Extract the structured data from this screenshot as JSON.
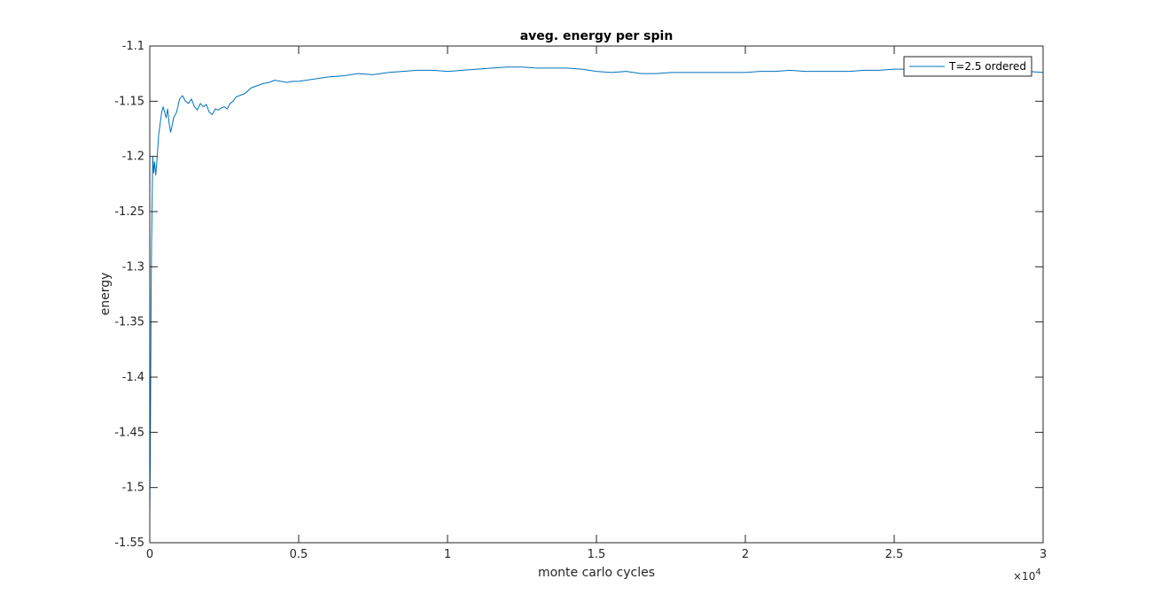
{
  "chart_data": {
    "type": "line",
    "title": "aveg. energy per spin",
    "xlabel": "monte carlo cycles",
    "ylabel": "energy",
    "xlim": [
      0,
      30000
    ],
    "ylim": [
      -1.55,
      -1.1
    ],
    "x_multiplier_label": "×10",
    "x_multiplier_exponent": "4",
    "xticks": [
      0,
      5000,
      10000,
      15000,
      20000,
      25000,
      30000
    ],
    "xtick_labels": [
      "0",
      "0.5",
      "1",
      "1.5",
      "2",
      "2.5",
      "3"
    ],
    "yticks": [
      -1.55,
      -1.5,
      -1.45,
      -1.4,
      -1.35,
      -1.3,
      -1.25,
      -1.2,
      -1.15,
      -1.1
    ],
    "ytick_labels": [
      "-1.55",
      "-1.5",
      "-1.45",
      "-1.4",
      "-1.35",
      "-1.3",
      "-1.25",
      "-1.2",
      "-1.15",
      "-1.1"
    ],
    "grid": false,
    "legend_position": "top-right",
    "series": [
      {
        "name": "T=2.5 ordered",
        "color": "#0072bd",
        "x": [
          0,
          15,
          30,
          45,
          60,
          80,
          100,
          130,
          160,
          200,
          250,
          300,
          350,
          400,
          450,
          500,
          550,
          600,
          650,
          700,
          750,
          800,
          900,
          1000,
          1100,
          1200,
          1300,
          1400,
          1500,
          1600,
          1700,
          1800,
          1900,
          2000,
          2100,
          2200,
          2300,
          2400,
          2500,
          2600,
          2700,
          2800,
          2900,
          3000,
          3200,
          3400,
          3600,
          3800,
          4000,
          4200,
          4400,
          4600,
          4800,
          5000,
          5500,
          6000,
          6500,
          7000,
          7500,
          8000,
          8500,
          9000,
          9500,
          10000,
          10500,
          11000,
          11500,
          12000,
          12500,
          13000,
          13500,
          14000,
          14500,
          15000,
          15500,
          16000,
          16500,
          17000,
          17500,
          18000,
          18500,
          19000,
          19500,
          20000,
          20500,
          21000,
          21500,
          22000,
          22500,
          23000,
          23500,
          24000,
          24500,
          25000,
          25500,
          26000,
          26500,
          27000,
          27500,
          28000,
          28500,
          29000,
          29500,
          30000
        ],
        "values": [
          -1.52,
          -1.48,
          -1.41,
          -1.33,
          -1.28,
          -1.24,
          -1.2,
          -1.215,
          -1.205,
          -1.217,
          -1.2,
          -1.18,
          -1.17,
          -1.16,
          -1.155,
          -1.16,
          -1.165,
          -1.157,
          -1.17,
          -1.178,
          -1.172,
          -1.165,
          -1.16,
          -1.148,
          -1.145,
          -1.15,
          -1.152,
          -1.148,
          -1.155,
          -1.158,
          -1.152,
          -1.155,
          -1.153,
          -1.16,
          -1.162,
          -1.157,
          -1.158,
          -1.156,
          -1.155,
          -1.157,
          -1.152,
          -1.15,
          -1.146,
          -1.145,
          -1.143,
          -1.138,
          -1.136,
          -1.134,
          -1.133,
          -1.131,
          -1.132,
          -1.133,
          -1.132,
          -1.132,
          -1.13,
          -1.128,
          -1.127,
          -1.125,
          -1.126,
          -1.124,
          -1.123,
          -1.122,
          -1.122,
          -1.123,
          -1.122,
          -1.121,
          -1.12,
          -1.119,
          -1.119,
          -1.12,
          -1.12,
          -1.12,
          -1.121,
          -1.123,
          -1.124,
          -1.123,
          -1.125,
          -1.125,
          -1.124,
          -1.124,
          -1.124,
          -1.124,
          -1.124,
          -1.124,
          -1.123,
          -1.123,
          -1.122,
          -1.123,
          -1.123,
          -1.123,
          -1.123,
          -1.122,
          -1.122,
          -1.121,
          -1.121,
          -1.121,
          -1.121,
          -1.121,
          -1.121,
          -1.121,
          -1.122,
          -1.122,
          -1.123,
          -1.124
        ]
      }
    ]
  }
}
